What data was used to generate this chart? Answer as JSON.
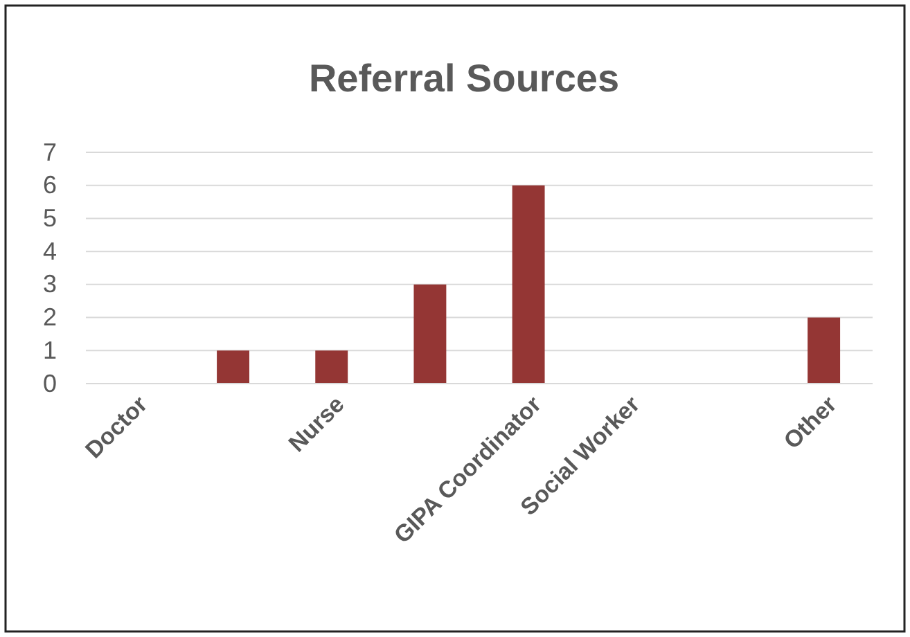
{
  "chart_data": {
    "type": "bar",
    "title": "Referral Sources",
    "categories": [
      "Doctor",
      null,
      "Nurse",
      null,
      "GIPA Coordinator",
      "Social Worker",
      null,
      "Other"
    ],
    "values": [
      0,
      1,
      1,
      3,
      6,
      0,
      0,
      2
    ],
    "color": "#943634",
    "ylim": [
      0,
      7
    ],
    "yticks": [
      0,
      1,
      2,
      3,
      4,
      5,
      6,
      7
    ],
    "grid": "y"
  }
}
